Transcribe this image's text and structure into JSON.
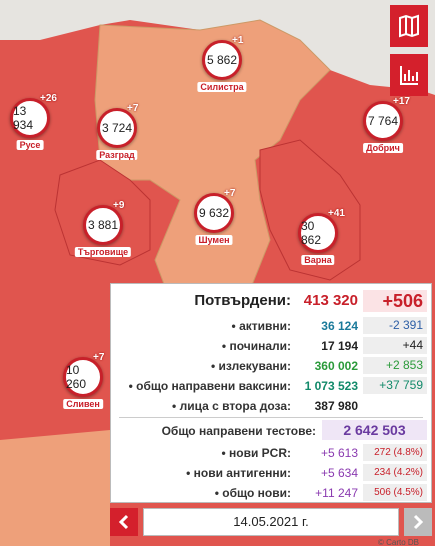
{
  "regions": [
    {
      "name": "Силистра",
      "total": "5 862",
      "new": "+1"
    },
    {
      "name": "Русе",
      "total": "13 934",
      "new": "+26"
    },
    {
      "name": "Разград",
      "total": "3 724",
      "new": "+7"
    },
    {
      "name": "Добрич",
      "total": "7 764",
      "new": "+17"
    },
    {
      "name": "Търговище",
      "total": "3 881",
      "new": "+9"
    },
    {
      "name": "Шумен",
      "total": "9 632",
      "new": "+7"
    },
    {
      "name": "Варна",
      "total": "30 862",
      "new": "+41"
    },
    {
      "name": "Сливен",
      "total": "10 260",
      "new": "+7"
    }
  ],
  "summary": {
    "confirmed": {
      "label": "Потвърдени:",
      "total": "413 320",
      "new": "+506"
    },
    "rows": [
      {
        "label": "• активни:",
        "total": "36 124",
        "change": "-2 391"
      },
      {
        "label": "• починали:",
        "total": "17 194",
        "change": "+44"
      },
      {
        "label": "• излекувани:",
        "total": "360 002",
        "change": "+2 853"
      },
      {
        "label": "• общо направени ваксини:",
        "total": "1 073 523",
        "change": "+37 759"
      },
      {
        "label": "• лица с втора доза:",
        "total": "387 980"
      }
    ],
    "tests": {
      "label": "Общо направени тестове:",
      "total": "2 642 503"
    },
    "test_rows": [
      {
        "label": "• нови PCR:",
        "new": "+5 613",
        "positive": "272 (4.8%)"
      },
      {
        "label": "• нови антигенни:",
        "new": "+5 634",
        "positive": "234 (4.2%)"
      },
      {
        "label": "• общо нови:",
        "new": "+11 247",
        "positive": "506 (4.5%)"
      }
    ]
  },
  "date": "14.05.2021 г.",
  "attribution": "© Carto DB"
}
